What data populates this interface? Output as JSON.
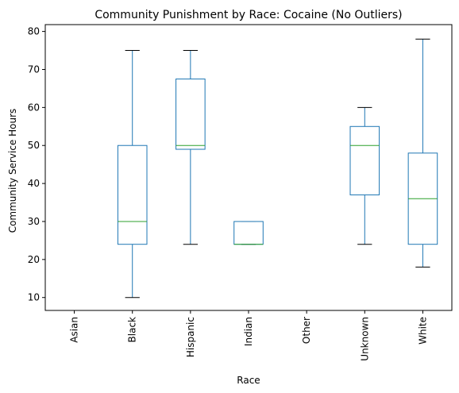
{
  "chart_data": {
    "type": "box",
    "title": "Community Punishment by Race: Cocaine (No Outliers)",
    "xlabel": "Race",
    "ylabel": "Community Service Hours",
    "ylim": [
      6.6,
      81.8
    ],
    "yticks": [
      10,
      20,
      30,
      40,
      50,
      60,
      70,
      80
    ],
    "categories": [
      "Asian",
      "Black",
      "Hispanic",
      "Indian",
      "Other",
      "Unknown",
      "White"
    ],
    "boxes": [
      null,
      {
        "whisker_low": 10,
        "q1": 24,
        "median": 30,
        "q3": 50,
        "whisker_high": 75
      },
      {
        "whisker_low": 24,
        "q1": 49,
        "median": 50,
        "q3": 67.5,
        "whisker_high": 75
      },
      {
        "whisker_low": 24,
        "q1": 24,
        "median": 24,
        "q3": 30,
        "whisker_high": 30
      },
      null,
      {
        "whisker_low": 24,
        "q1": 37,
        "median": 50,
        "q3": 55,
        "whisker_high": 60
      },
      {
        "whisker_low": 18,
        "q1": 24,
        "median": 36,
        "q3": 48,
        "whisker_high": 78
      }
    ],
    "colors": {
      "box": "#1f77b4",
      "median": "#2ca02c",
      "whisker_cap": "#000000"
    },
    "grid": false,
    "legend": "none"
  }
}
